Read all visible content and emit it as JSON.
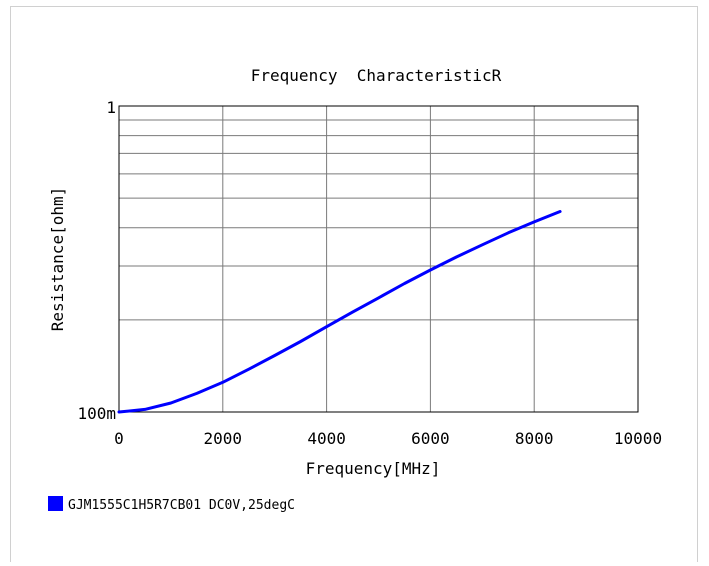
{
  "chart_data": {
    "type": "line",
    "title": "Frequency  CharacteristicR",
    "xlabel": "Frequency[MHz]",
    "ylabel": "Resistance[ohm]",
    "xlim": [
      0,
      10000
    ],
    "ylim": [
      0.1,
      1
    ],
    "y_scale": "log",
    "x_ticks": [
      0,
      2000,
      4000,
      6000,
      8000,
      10000
    ],
    "x_tick_labels": [
      "0",
      "2000",
      "4000",
      "6000",
      "8000",
      "10000"
    ],
    "y_tick_values": [
      0.1,
      1
    ],
    "y_tick_labels": [
      "100m",
      "1"
    ],
    "grid": true,
    "legend_position": "bottom-left",
    "series": [
      {
        "name": "GJM1555C1H5R7CB01 DC0V,25degC",
        "color": "#0000ff",
        "x": [
          0,
          500,
          1000,
          1500,
          2000,
          2500,
          3000,
          3500,
          4000,
          4500,
          5000,
          5500,
          6000,
          6500,
          7000,
          7500,
          8000,
          8500
        ],
        "y": [
          0.1,
          0.102,
          0.107,
          0.115,
          0.125,
          0.138,
          0.153,
          0.17,
          0.19,
          0.212,
          0.236,
          0.263,
          0.291,
          0.321,
          0.352,
          0.385,
          0.418,
          0.452
        ]
      }
    ]
  }
}
